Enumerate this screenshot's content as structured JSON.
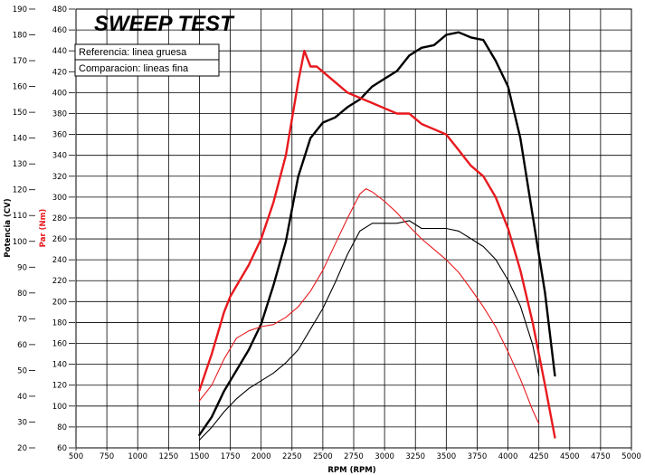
{
  "chart_data": {
    "type": "line",
    "title": "SWEEP TEST",
    "legend": [
      "Referencia: linea gruesa",
      "Comparacion: lineas fina"
    ],
    "legend_position": "top-left",
    "grid": true,
    "xlabel": "RPM (RPM)",
    "xlim": [
      500,
      5000
    ],
    "x_ticks": [
      "500",
      "750",
      "1000",
      "1250",
      "1500",
      "1750",
      "2000",
      "2250",
      "2500",
      "2750",
      "3000",
      "3250",
      "3500",
      "3750",
      "4000",
      "4250",
      "4500",
      "4750",
      "5000"
    ],
    "ylabel_left": "Potencia (CV)",
    "ylim_left": [
      20,
      190
    ],
    "y_ticks_left": [
      "20",
      "30",
      "40",
      "50",
      "60",
      "70",
      "80",
      "90",
      "100",
      "110",
      "120",
      "130",
      "140",
      "150",
      "160",
      "170",
      "180",
      "190"
    ],
    "ylabel_right": "Par (Nm)",
    "ylim_right": [
      60,
      480
    ],
    "y_ticks_right": [
      "60",
      "80",
      "100",
      "120",
      "140",
      "160",
      "180",
      "200",
      "220",
      "240",
      "260",
      "280",
      "300",
      "320",
      "340",
      "360",
      "380",
      "400",
      "420",
      "440",
      "460",
      "480"
    ],
    "colors": {
      "power": "#000000",
      "torque": "#e8191e",
      "grid": "#000000"
    },
    "series": [
      {
        "axis": "left",
        "color": "#000000",
        "weight": "thick",
        "x": [
          1500,
          1600,
          1700,
          1800,
          1900,
          2000,
          2100,
          2200,
          2300,
          2400,
          2500,
          2600,
          2700,
          2800,
          2900,
          3000,
          3100,
          3200,
          3300,
          3400,
          3500,
          3600,
          3700,
          3800,
          3900,
          4000,
          4100,
          4200,
          4300,
          4380
        ],
        "y": [
          25,
          32,
          42,
          50,
          58,
          68,
          83,
          100,
          125,
          140,
          146,
          148,
          152,
          155,
          160,
          163,
          166,
          172,
          175,
          176,
          180,
          181,
          179,
          178,
          170,
          160,
          140,
          110,
          80,
          48
        ]
      },
      {
        "axis": "left",
        "color": "#000000",
        "weight": "thin",
        "x": [
          1500,
          1600,
          1700,
          1800,
          1900,
          2000,
          2100,
          2200,
          2300,
          2400,
          2500,
          2600,
          2700,
          2800,
          2900,
          3000,
          3100,
          3200,
          3300,
          3400,
          3500,
          3600,
          3700,
          3800,
          3900,
          4000,
          4100,
          4200,
          4250
        ],
        "y": [
          23,
          28,
          34,
          39,
          43,
          46,
          49,
          53,
          58,
          66,
          74,
          84,
          95,
          104,
          107,
          107,
          107,
          108,
          105,
          105,
          105,
          104,
          101,
          98,
          93,
          85,
          75,
          60,
          48
        ]
      },
      {
        "axis": "right",
        "color": "#e8191e",
        "weight": "thick",
        "x": [
          1500,
          1600,
          1700,
          1750,
          1800,
          1900,
          2000,
          2100,
          2200,
          2250,
          2300,
          2350,
          2400,
          2450,
          2500,
          2600,
          2700,
          2800,
          2900,
          3000,
          3100,
          3200,
          3300,
          3400,
          3500,
          3600,
          3700,
          3800,
          3900,
          4000,
          4100,
          4200,
          4300,
          4380
        ],
        "y": [
          115,
          150,
          190,
          205,
          215,
          235,
          260,
          295,
          340,
          375,
          410,
          440,
          425,
          425,
          420,
          410,
          400,
          395,
          390,
          385,
          380,
          380,
          370,
          365,
          360,
          345,
          330,
          320,
          300,
          270,
          230,
          180,
          120,
          70
        ]
      },
      {
        "axis": "right",
        "color": "#e8191e",
        "weight": "thin",
        "x": [
          1500,
          1600,
          1700,
          1800,
          1900,
          2000,
          2100,
          2200,
          2300,
          2400,
          2500,
          2600,
          2700,
          2800,
          2850,
          2900,
          3000,
          3100,
          3200,
          3300,
          3400,
          3500,
          3600,
          3700,
          3800,
          3900,
          4000,
          4100,
          4200,
          4250
        ],
        "y": [
          105,
          120,
          145,
          165,
          172,
          176,
          178,
          185,
          195,
          210,
          230,
          255,
          280,
          303,
          308,
          305,
          296,
          285,
          272,
          260,
          250,
          240,
          228,
          212,
          195,
          176,
          152,
          126,
          96,
          83
        ]
      }
    ]
  }
}
